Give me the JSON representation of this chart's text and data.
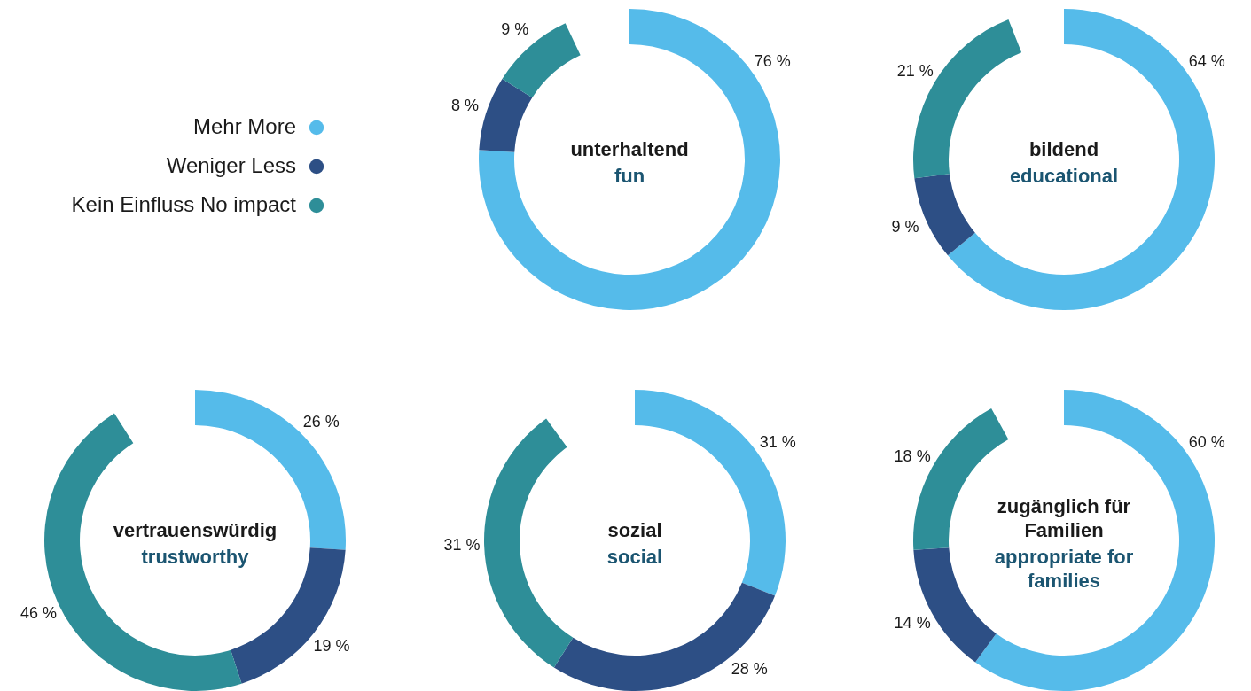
{
  "chart_data": [
    {
      "type": "donut",
      "title": "unterhaltend",
      "subtitle": "fun",
      "categories": [
        "Mehr More",
        "Weniger Less",
        "Kein Einfluss No impact"
      ],
      "values": [
        76,
        8,
        9
      ],
      "colors": [
        "#55bbea",
        "#2d4f85",
        "#2e8e98"
      ],
      "value_labels": [
        "76 %",
        "8 %",
        "9 %"
      ],
      "legend": "left"
    },
    {
      "type": "donut",
      "title": "bildend",
      "subtitle": "educational",
      "categories": [
        null,
        null,
        null
      ],
      "values": [
        64,
        9,
        21
      ],
      "colors": [
        "#55bbea",
        "#2d4f85",
        "#2e8e98"
      ],
      "value_labels": [
        "64 %",
        "9 %",
        "21 %"
      ]
    },
    {
      "type": "donut",
      "title": "vertrauenswürdig",
      "subtitle": "trustworthy",
      "categories": [
        null,
        null,
        null
      ],
      "values": [
        26,
        19,
        46
      ],
      "colors": [
        "#55bbea",
        "#2d4f85",
        "#2e8e98"
      ],
      "value_labels": [
        "26 %",
        "19 %",
        "46 %"
      ]
    },
    {
      "type": "donut",
      "title": "sozial",
      "subtitle": "social",
      "categories": [
        null,
        null,
        null
      ],
      "values": [
        31,
        28,
        31
      ],
      "colors": [
        "#55bbea",
        "#2d4f85",
        "#2e8e98"
      ],
      "value_labels": [
        "31 %",
        "28 %",
        "31 %"
      ]
    },
    {
      "type": "donut",
      "title": "zugänglich für Familien",
      "subtitle": "appropriate for families",
      "categories": [
        null,
        null,
        null
      ],
      "values": [
        60,
        14,
        18
      ],
      "colors": [
        "#55bbea",
        "#2d4f85",
        "#2e8e98"
      ],
      "value_labels": [
        "60 %",
        "14 %",
        "18 %"
      ]
    }
  ]
}
